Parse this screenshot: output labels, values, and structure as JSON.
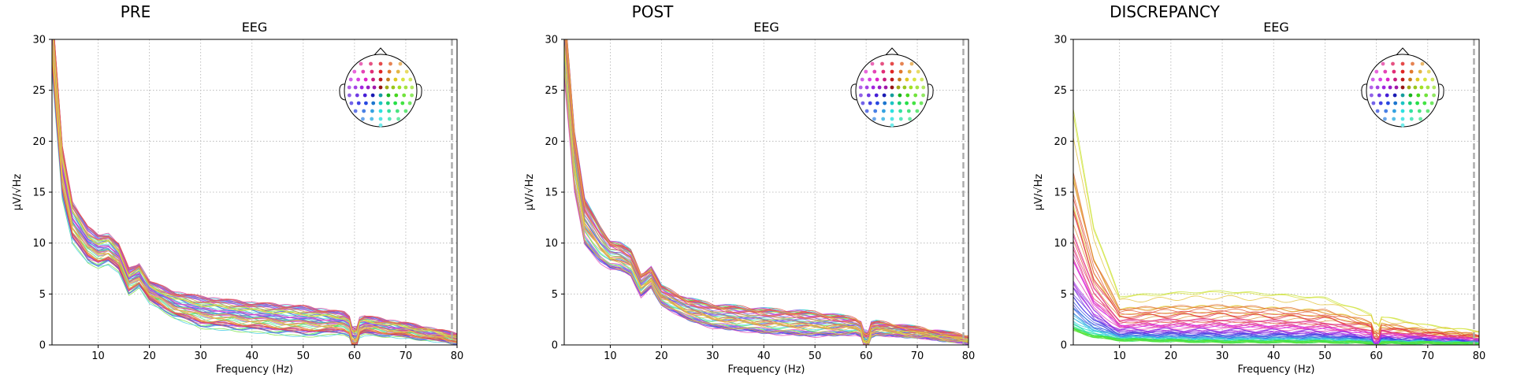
{
  "figure": {
    "ylabel_text": "µV/√Hz"
  },
  "chart_data": [
    {
      "type": "line",
      "panel_title": "PRE",
      "title": "EEG",
      "xlabel": "Frequency (Hz)",
      "ylabel": "µV/√Hz",
      "xlim": [
        1,
        80
      ],
      "ylim": [
        0,
        30
      ],
      "xticks": [
        10,
        20,
        30,
        40,
        50,
        60,
        70,
        80
      ],
      "yticks": [
        0,
        5,
        10,
        15,
        20,
        25,
        30
      ],
      "grid": true,
      "inset": "sensor-topomap",
      "inset_position": "top-right",
      "cutoff_line_x": 79,
      "line_count": 60,
      "mean_profile": {
        "x": [
          1,
          3,
          5,
          8,
          10,
          12,
          14,
          16,
          18,
          20,
          25,
          30,
          40,
          50,
          58,
          60,
          62,
          70,
          80
        ],
        "y": [
          30,
          17,
          12,
          9.8,
          9.2,
          9.4,
          8.5,
          6.2,
          6.8,
          5.2,
          3.9,
          3.2,
          2.7,
          2.3,
          2.1,
          1.5,
          1.9,
          1.4,
          0.6
        ]
      },
      "spread": {
        "x": [
          1,
          5,
          10,
          20,
          30,
          40,
          50,
          60,
          70,
          80
        ],
        "low": [
          24,
          10,
          7.5,
          4.2,
          2.4,
          1.6,
          1.1,
          0.8,
          0.6,
          0.2
        ],
        "high": [
          32,
          15,
          11.5,
          6.8,
          6.2,
          5.2,
          4.8,
          3.2,
          2.4,
          1.4
        ]
      }
    },
    {
      "type": "line",
      "panel_title": "POST",
      "title": "EEG",
      "xlabel": "Frequency (Hz)",
      "ylabel": "µV/√Hz",
      "xlim": [
        1,
        80
      ],
      "ylim": [
        0,
        30
      ],
      "xticks": [
        10,
        20,
        30,
        40,
        50,
        60,
        70,
        80
      ],
      "yticks": [
        0,
        5,
        10,
        15,
        20,
        25,
        30
      ],
      "grid": true,
      "inset": "sensor-topomap",
      "inset_position": "top-right",
      "cutoff_line_x": 79,
      "line_count": 60,
      "mean_profile": {
        "x": [
          1,
          3,
          5,
          8,
          10,
          12,
          14,
          16,
          18,
          20,
          25,
          30,
          40,
          50,
          58,
          60,
          62,
          70,
          80
        ],
        "y": [
          30,
          18,
          12,
          9.8,
          8.8,
          8.6,
          8.0,
          5.8,
          6.6,
          4.8,
          3.5,
          2.8,
          2.3,
          2.0,
          1.8,
          1.3,
          1.6,
          1.2,
          0.5
        ]
      },
      "spread": {
        "x": [
          1,
          5,
          10,
          20,
          30,
          40,
          50,
          60,
          70,
          80
        ],
        "low": [
          22,
          10,
          7.2,
          4.0,
          2.2,
          1.4,
          1.0,
          0.7,
          0.5,
          0.2
        ],
        "high": [
          32,
          16,
          11,
          6.5,
          5.3,
          4.6,
          4.2,
          2.6,
          1.8,
          1.2
        ]
      }
    },
    {
      "type": "line",
      "panel_title": "DISCREPANCY",
      "title": "EEG",
      "xlabel": "Frequency (Hz)",
      "ylabel": "µV/√Hz",
      "xlim": [
        1,
        80
      ],
      "ylim": [
        0,
        30
      ],
      "xticks": [
        10,
        20,
        30,
        40,
        50,
        60,
        70,
        80
      ],
      "yticks": [
        0,
        5,
        10,
        15,
        20,
        25,
        30
      ],
      "grid": true,
      "inset": "sensor-topomap",
      "inset_position": "top-right",
      "cutoff_line_x": 79,
      "line_count": 60,
      "mean_profile": {
        "x": [
          1,
          3,
          5,
          8,
          10,
          15,
          20,
          30,
          40,
          50,
          60,
          70,
          80
        ],
        "y": [
          7,
          4.5,
          3.0,
          2.0,
          1.6,
          1.3,
          1.1,
          1.0,
          0.9,
          0.8,
          0.6,
          0.5,
          0.3
        ]
      },
      "spread": {
        "x": [
          1,
          5,
          10,
          20,
          30,
          40,
          50,
          60,
          70,
          80
        ],
        "low": [
          1.5,
          0.8,
          0.5,
          0.4,
          0.3,
          0.3,
          0.3,
          0.2,
          0.2,
          0.1
        ],
        "high": [
          24,
          12,
          5.0,
          5.3,
          5.5,
          5.2,
          4.8,
          3.0,
          2.0,
          1.4
        ]
      }
    }
  ]
}
